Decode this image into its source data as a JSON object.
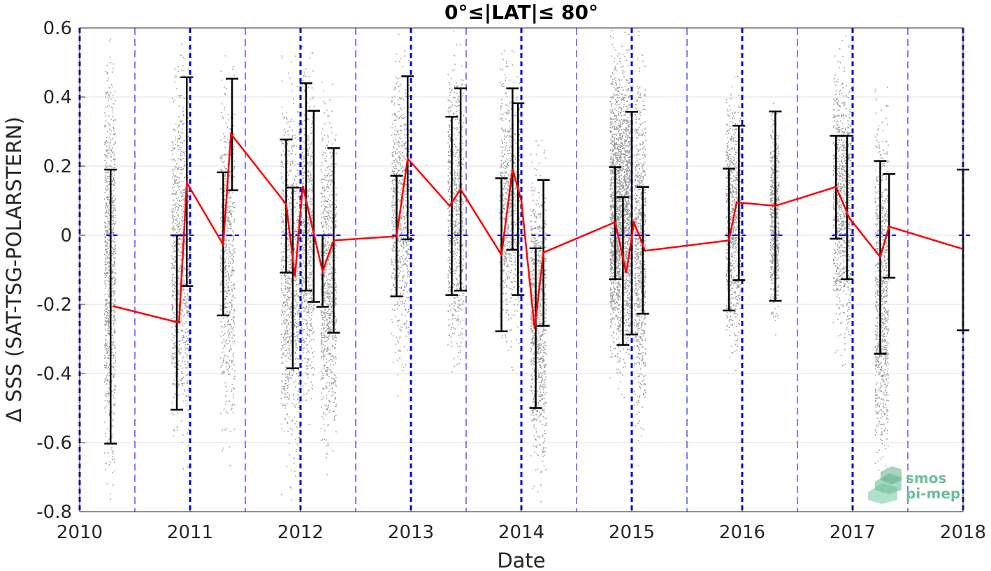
{
  "chart_data": {
    "type": "scatter",
    "title": "0°≤|LAT|≤ 80°",
    "xlabel": "Date",
    "ylabel": "Δ SSS (SAT-TSG-POLARSTERN)",
    "xlim": [
      2010,
      2018
    ],
    "ylim": [
      -0.8,
      0.6
    ],
    "x_ticks": [
      "2010",
      "2011",
      "2012",
      "2013",
      "2014",
      "2015",
      "2016",
      "2017",
      "2018"
    ],
    "y_ticks": [
      "0.6",
      "0.4",
      "0.2",
      "0",
      "-0.2",
      "-0.4",
      "-0.6",
      "-0.8"
    ],
    "y_tick_values": [
      0.6,
      0.4,
      0.2,
      0,
      -0.2,
      -0.4,
      -0.6,
      -0.8
    ],
    "grid": true,
    "year_boundaries": [
      2010,
      2011,
      2012,
      2013,
      2014,
      2015,
      2016,
      2017,
      2018
    ],
    "half_year_lines": [
      2010.5,
      2011.5,
      2012.5,
      2013.5,
      2014.5,
      2015.5,
      2016.5,
      2017.5
    ],
    "mean_series": {
      "color": "#ff0000",
      "x": [
        2010.3,
        2010.9,
        2010.97,
        2011.3,
        2011.37,
        2011.87,
        2011.95,
        2012.02,
        2012.2,
        2012.3,
        2012.87,
        2012.97,
        2013.35,
        2013.45,
        2013.82,
        2013.92,
        2014.0,
        2014.12,
        2014.2,
        2014.85,
        2014.95,
        2015.02,
        2015.12,
        2015.88,
        2015.95,
        2016.3,
        2016.85,
        2016.97,
        2017.25,
        2017.33,
        2018.0
      ],
      "y": [
        -0.205,
        -0.253,
        0.152,
        -0.027,
        0.293,
        0.09,
        -0.12,
        0.143,
        -0.105,
        -0.015,
        -0.003,
        0.222,
        0.085,
        0.133,
        -0.057,
        0.192,
        0.1,
        -0.27,
        -0.05,
        0.038,
        -0.11,
        0.037,
        -0.045,
        -0.015,
        0.095,
        0.085,
        0.14,
        0.05,
        -0.063,
        0.025,
        -0.04
      ]
    },
    "error_bars": [
      {
        "x": 2010.28,
        "low": -0.603,
        "high": 0.19
      },
      {
        "x": 2010.88,
        "low": -0.505,
        "high": 0.0
      },
      {
        "x": 2010.97,
        "low": -0.147,
        "high": 0.457
      },
      {
        "x": 2011.3,
        "low": -0.232,
        "high": 0.182
      },
      {
        "x": 2011.38,
        "low": 0.13,
        "high": 0.453
      },
      {
        "x": 2011.87,
        "low": -0.108,
        "high": 0.277
      },
      {
        "x": 2011.93,
        "low": -0.385,
        "high": 0.138
      },
      {
        "x": 2012.05,
        "low": -0.16,
        "high": 0.44
      },
      {
        "x": 2012.12,
        "low": -0.193,
        "high": 0.36
      },
      {
        "x": 2012.2,
        "low": -0.207,
        "high": 0.0
      },
      {
        "x": 2012.3,
        "low": -0.282,
        "high": 0.252
      },
      {
        "x": 2012.87,
        "low": -0.177,
        "high": 0.172
      },
      {
        "x": 2012.97,
        "low": -0.012,
        "high": 0.46
      },
      {
        "x": 2013.37,
        "low": -0.173,
        "high": 0.343
      },
      {
        "x": 2013.45,
        "low": -0.16,
        "high": 0.425
      },
      {
        "x": 2013.82,
        "low": -0.278,
        "high": 0.165
      },
      {
        "x": 2013.92,
        "low": -0.042,
        "high": 0.425
      },
      {
        "x": 2013.97,
        "low": -0.173,
        "high": 0.382
      },
      {
        "x": 2014.13,
        "low": -0.5,
        "high": -0.038
      },
      {
        "x": 2014.2,
        "low": -0.262,
        "high": 0.16
      },
      {
        "x": 2014.85,
        "low": -0.127,
        "high": 0.197
      },
      {
        "x": 2014.92,
        "low": -0.318,
        "high": 0.11
      },
      {
        "x": 2015.0,
        "low": -0.287,
        "high": 0.357
      },
      {
        "x": 2015.1,
        "low": -0.227,
        "high": 0.14
      },
      {
        "x": 2015.88,
        "low": -0.218,
        "high": 0.193
      },
      {
        "x": 2015.97,
        "low": -0.13,
        "high": 0.317
      },
      {
        "x": 2016.3,
        "low": -0.19,
        "high": 0.358
      },
      {
        "x": 2016.85,
        "low": -0.01,
        "high": 0.288
      },
      {
        "x": 2016.95,
        "low": -0.127,
        "high": 0.288
      },
      {
        "x": 2017.25,
        "low": -0.343,
        "high": 0.215
      },
      {
        "x": 2017.33,
        "low": -0.123,
        "high": 0.177
      },
      {
        "x": 2018.0,
        "low": -0.275,
        "high": 0.19
      }
    ],
    "scatter_clusters": [
      {
        "x_start": 2010.22,
        "x_end": 2010.32,
        "y_low": -0.8,
        "y_high": 0.6,
        "density": 900
      },
      {
        "x_start": 2010.83,
        "x_end": 2011.0,
        "y_low": -0.7,
        "y_high": 0.6,
        "density": 900
      },
      {
        "x_start": 2011.27,
        "x_end": 2011.4,
        "y_low": -0.7,
        "y_high": 0.55,
        "density": 600
      },
      {
        "x_start": 2011.82,
        "x_end": 2012.0,
        "y_low": -0.8,
        "y_high": 0.55,
        "density": 900
      },
      {
        "x_start": 2012.0,
        "x_end": 2012.12,
        "y_low": -0.6,
        "y_high": 0.6,
        "density": 700
      },
      {
        "x_start": 2012.18,
        "x_end": 2012.32,
        "y_low": -0.7,
        "y_high": 0.45,
        "density": 900
      },
      {
        "x_start": 2012.82,
        "x_end": 2012.98,
        "y_low": -0.45,
        "y_high": 0.6,
        "density": 700
      },
      {
        "x_start": 2013.33,
        "x_end": 2013.47,
        "y_low": -0.45,
        "y_high": 0.6,
        "density": 800
      },
      {
        "x_start": 2013.8,
        "x_end": 2013.98,
        "y_low": -0.4,
        "y_high": 0.6,
        "density": 700
      },
      {
        "x_start": 2014.08,
        "x_end": 2014.22,
        "y_low": -0.8,
        "y_high": 0.3,
        "density": 900
      },
      {
        "x_start": 2014.8,
        "x_end": 2014.98,
        "y_low": -0.45,
        "y_high": 0.6,
        "density": 2200
      },
      {
        "x_start": 2015.02,
        "x_end": 2015.12,
        "y_low": -0.65,
        "y_high": 0.6,
        "density": 800
      },
      {
        "x_start": 2015.85,
        "x_end": 2015.98,
        "y_low": -0.4,
        "y_high": 0.5,
        "density": 800
      },
      {
        "x_start": 2016.25,
        "x_end": 2016.33,
        "y_low": -0.3,
        "y_high": 0.4,
        "density": 600
      },
      {
        "x_start": 2016.82,
        "x_end": 2016.98,
        "y_low": -0.4,
        "y_high": 0.6,
        "density": 900
      },
      {
        "x_start": 2017.2,
        "x_end": 2017.32,
        "y_low": -0.8,
        "y_high": 0.45,
        "density": 900
      }
    ]
  },
  "logo": {
    "line1": "smos",
    "line2": "pi-mep",
    "color": "#6dbf9a"
  }
}
